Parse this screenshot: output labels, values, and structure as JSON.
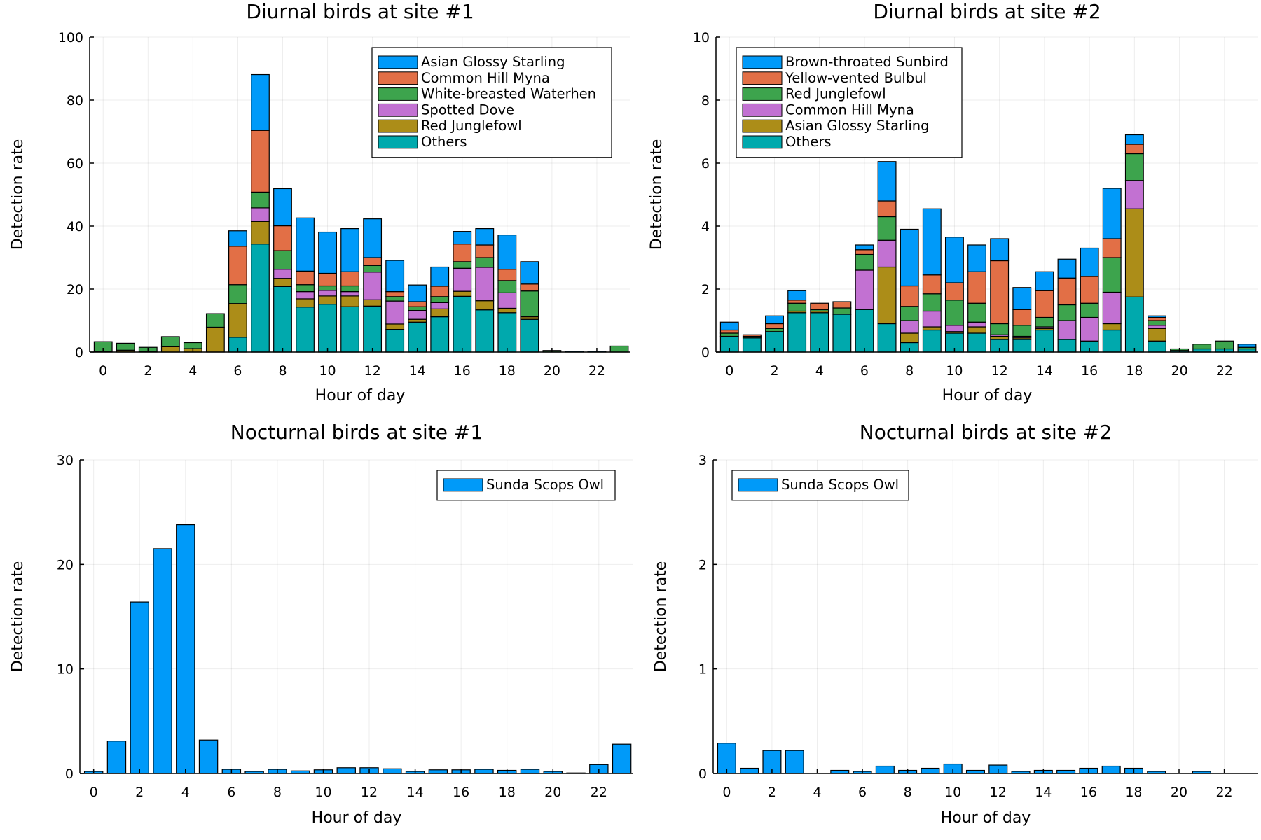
{
  "chart_data": [
    {
      "type": "bar",
      "stacked": true,
      "title": "Diurnal birds at site #1",
      "xlabel": "Hour of day",
      "ylabel": "Detection rate",
      "ylim": [
        0,
        100
      ],
      "yticks": [
        0,
        20,
        40,
        60,
        80,
        100
      ],
      "xticks": [
        0,
        2,
        4,
        6,
        8,
        10,
        12,
        14,
        16,
        18,
        20,
        22
      ],
      "legend_position": "top-right",
      "hours": [
        0,
        1,
        2,
        3,
        4,
        5,
        6,
        7,
        8,
        9,
        10,
        11,
        12,
        13,
        14,
        15,
        16,
        17,
        18,
        19,
        20,
        21,
        22,
        23
      ],
      "series": [
        {
          "name": "Others",
          "color": "#00a9ad",
          "values": [
            0,
            0,
            0,
            0,
            0,
            0,
            4.7,
            34.3,
            20.8,
            14.3,
            15.2,
            14.4,
            14.6,
            7.2,
            9.5,
            11.2,
            17.7,
            13.4,
            12.5,
            10.4,
            0,
            0,
            0,
            0
          ]
        },
        {
          "name": "Red Junglefowl",
          "color": "#ac8d18",
          "values": [
            0.2,
            0.6,
            0.2,
            1.7,
            1.1,
            7.9,
            10.7,
            7.2,
            2.6,
            2.6,
            2.6,
            3.4,
            2.0,
            1.7,
            0.9,
            2.5,
            1.6,
            2.9,
            1.4,
            0.8,
            0,
            0,
            0,
            0
          ]
        },
        {
          "name": "Spotted Dove",
          "color": "#c271d2",
          "values": [
            0,
            0,
            0,
            0,
            0,
            0,
            0,
            4.3,
            2.9,
            2.3,
            1.8,
            1.4,
            8.8,
            7.3,
            2.8,
            2.0,
            7.3,
            10.6,
            4.9,
            0,
            0,
            0,
            0,
            0
          ]
        },
        {
          "name": "White-breasted Waterhen",
          "color": "#3da44d",
          "values": [
            3.1,
            2.2,
            1.3,
            3.2,
            1.9,
            4.3,
            6.0,
            5.0,
            5.9,
            2.2,
            1.4,
            1.8,
            2.1,
            1.4,
            1.2,
            1.9,
            2.1,
            3.1,
            3.9,
            8.2,
            0.5,
            0,
            0,
            1.9
          ]
        },
        {
          "name": "Common Hill Myna",
          "color": "#e26f46",
          "values": [
            0,
            0,
            0,
            0,
            0,
            0,
            12.2,
            19.6,
            7.9,
            4.3,
            4.0,
            4.5,
            2.5,
            1.6,
            1.6,
            3.3,
            5.6,
            4.0,
            3.6,
            2.2,
            0,
            0,
            0,
            0
          ]
        },
        {
          "name": "Asian Glossy Starling",
          "color": "#009af9",
          "values": [
            0,
            0,
            0,
            0,
            0,
            0,
            4.9,
            17.7,
            11.8,
            16.9,
            13.1,
            13.7,
            12.3,
            9.9,
            5.3,
            6.1,
            4.0,
            5.2,
            10.9,
            7.1,
            0,
            0.3,
            0.3,
            0
          ]
        }
      ]
    },
    {
      "type": "bar",
      "stacked": true,
      "title": "Diurnal birds at site #2",
      "xlabel": "Hour of day",
      "ylabel": "Detection rate",
      "ylim": [
        0,
        10
      ],
      "yticks": [
        0,
        2,
        4,
        6,
        8,
        10
      ],
      "xticks": [
        0,
        2,
        4,
        6,
        8,
        10,
        12,
        14,
        16,
        18,
        20,
        22
      ],
      "legend_position": "top-left",
      "hours": [
        0,
        1,
        2,
        3,
        4,
        5,
        6,
        7,
        8,
        9,
        10,
        11,
        12,
        13,
        14,
        15,
        16,
        17,
        18,
        19,
        20,
        21,
        22,
        23
      ],
      "series": [
        {
          "name": "Others",
          "color": "#00a9ad",
          "values": [
            0.5,
            0.45,
            0.65,
            1.25,
            1.25,
            1.2,
            1.35,
            0.9,
            0.3,
            0.7,
            0.6,
            0.6,
            0.4,
            0.4,
            0.7,
            0.4,
            0.35,
            0.7,
            1.75,
            0.35,
            0.05,
            0.1,
            0.1,
            0.1
          ]
        },
        {
          "name": "Asian Glossy Starling",
          "color": "#ac8d18",
          "values": [
            0,
            0,
            0,
            0.05,
            0.05,
            0,
            0,
            1.8,
            0.3,
            0.1,
            0.05,
            0.2,
            0.1,
            0.05,
            0.05,
            0,
            0,
            0.2,
            2.8,
            0.4,
            0,
            0,
            0,
            0
          ]
        },
        {
          "name": "Common Hill Myna",
          "color": "#c271d2",
          "values": [
            0,
            0,
            0,
            0,
            0,
            0,
            1.25,
            0.85,
            0.4,
            0.5,
            0.2,
            0.15,
            0.05,
            0.05,
            0.05,
            0.6,
            0.75,
            1.0,
            0.9,
            0.1,
            0,
            0,
            0,
            0
          ]
        },
        {
          "name": "Red Junglefowl",
          "color": "#3da44d",
          "values": [
            0.1,
            0.05,
            0.1,
            0.25,
            0.05,
            0.2,
            0.5,
            0.75,
            0.45,
            0.55,
            0.8,
            0.6,
            0.35,
            0.35,
            0.3,
            0.5,
            0.45,
            1.1,
            0.85,
            0.15,
            0.05,
            0.15,
            0.25,
            0.05
          ]
        },
        {
          "name": "Yellow-vented Bulbul",
          "color": "#e26f46",
          "values": [
            0.1,
            0.05,
            0.15,
            0.1,
            0.2,
            0.2,
            0.15,
            0.5,
            0.65,
            0.6,
            0.55,
            1.0,
            2.0,
            0.5,
            0.85,
            0.85,
            0.85,
            0.6,
            0.3,
            0.1,
            0,
            0,
            0,
            0
          ]
        },
        {
          "name": "Brown-throated Sunbird",
          "color": "#009af9",
          "values": [
            0.25,
            0,
            0.25,
            0.3,
            0,
            0,
            0.15,
            1.25,
            1.8,
            2.1,
            1.45,
            0.85,
            0.7,
            0.7,
            0.6,
            0.6,
            0.9,
            1.6,
            0.3,
            0.05,
            0,
            0,
            0,
            0.1
          ]
        }
      ]
    },
    {
      "type": "bar",
      "title": "Nocturnal birds at site #1",
      "xlabel": "Hour of day",
      "ylabel": "Detection rate",
      "ylim": [
        0,
        30
      ],
      "yticks": [
        0,
        10,
        20,
        30
      ],
      "xticks": [
        0,
        2,
        4,
        6,
        8,
        10,
        12,
        14,
        16,
        18,
        20,
        22
      ],
      "legend_position": "top-right",
      "hours": [
        0,
        1,
        2,
        3,
        4,
        5,
        6,
        7,
        8,
        9,
        10,
        11,
        12,
        13,
        14,
        15,
        16,
        17,
        18,
        19,
        20,
        21,
        22,
        23
      ],
      "series": [
        {
          "name": "Sunda Scops Owl",
          "color": "#009af9",
          "values": [
            0.2,
            3.1,
            16.4,
            21.5,
            23.8,
            3.2,
            0.4,
            0.2,
            0.4,
            0.25,
            0.35,
            0.55,
            0.55,
            0.45,
            0.2,
            0.35,
            0.35,
            0.4,
            0.3,
            0.4,
            0.2,
            0.05,
            0.85,
            2.8
          ]
        }
      ]
    },
    {
      "type": "bar",
      "title": "Nocturnal birds at site #2",
      "xlabel": "Hour of day",
      "ylabel": "Detection rate",
      "ylim": [
        0,
        3
      ],
      "yticks": [
        0,
        1,
        2,
        3
      ],
      "xticks": [
        0,
        2,
        4,
        6,
        8,
        10,
        12,
        14,
        16,
        18,
        20,
        22
      ],
      "legend_position": "top-left",
      "hours": [
        0,
        1,
        2,
        3,
        4,
        5,
        6,
        7,
        8,
        9,
        10,
        11,
        12,
        13,
        14,
        15,
        16,
        17,
        18,
        19,
        20,
        21,
        22,
        23
      ],
      "series": [
        {
          "name": "Sunda Scops Owl",
          "color": "#009af9",
          "values": [
            0.29,
            0.05,
            0.22,
            0.22,
            0,
            0.03,
            0.02,
            0.07,
            0.03,
            0.05,
            0.09,
            0.03,
            0.08,
            0.02,
            0.03,
            0.03,
            0.05,
            0.07,
            0.05,
            0.02,
            0,
            0.02,
            0,
            0
          ]
        }
      ]
    }
  ]
}
